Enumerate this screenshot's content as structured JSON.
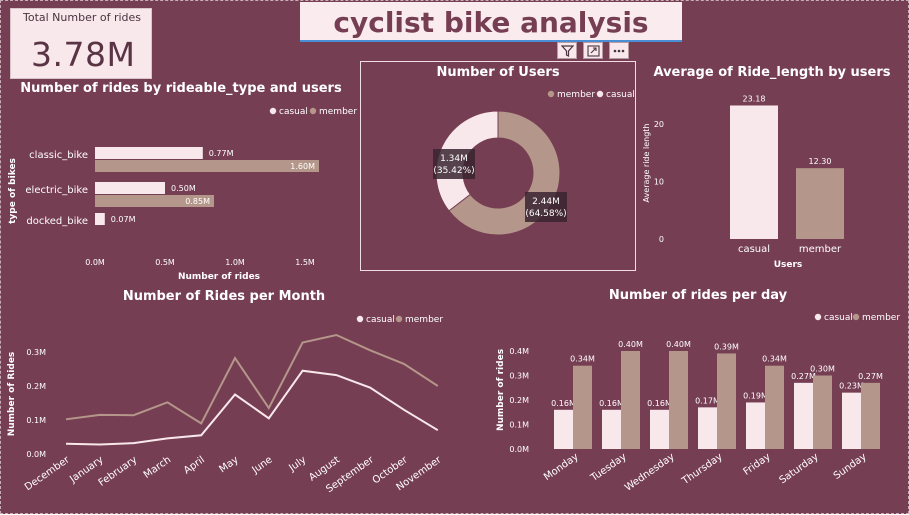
{
  "header": {
    "title": "cyclist bike analysis",
    "kpi_label": "Total Number of rides",
    "kpi_value": "3.78M"
  },
  "toolbar": {
    "filter_icon": "filter-icon",
    "focus_icon": "focus-mode-icon",
    "more_icon": "more-options-icon"
  },
  "colors": {
    "background": "#763E53",
    "casual": "#F8E8EB",
    "member": "#B4968A",
    "light_text": "#ffffff"
  },
  "chart_data": [
    {
      "id": "rideable",
      "type": "bar",
      "orientation": "horizontal",
      "title": "Number of rides by rideable_type and users",
      "xlabel": "Number of rides",
      "ylabel": "type of bikes",
      "categories": [
        "classic_bike",
        "electric_bike",
        "docked_bike"
      ],
      "series": [
        {
          "name": "casual",
          "values": [
            0.77,
            0.5,
            0.07
          ],
          "labels": [
            "0.77M",
            "0.50M",
            "0.07M"
          ]
        },
        {
          "name": "member",
          "values": [
            1.6,
            0.85,
            null
          ],
          "labels": [
            "1.60M",
            "0.85M",
            ""
          ]
        }
      ],
      "xticks": [
        "0.0M",
        "0.5M",
        "1.0M",
        "1.5M"
      ],
      "xtick_values": [
        0,
        0.5,
        1.0,
        1.5
      ],
      "xlim": [
        0,
        1.6
      ],
      "legend": [
        "casual",
        "member"
      ],
      "legend_position": "top-right"
    },
    {
      "id": "users",
      "type": "pie",
      "donut": true,
      "title": "Number of Users",
      "slices": [
        {
          "name": "member",
          "value": 2.44,
          "percent": 64.58,
          "label": "2.44M",
          "pct_label": "(64.58%)"
        },
        {
          "name": "casual",
          "value": 1.34,
          "percent": 35.42,
          "label": "1.34M",
          "pct_label": "(35.42%)"
        }
      ],
      "legend": [
        "member",
        "casual"
      ],
      "legend_position": "top-right"
    },
    {
      "id": "ridelength",
      "type": "bar",
      "title": "Average of Ride_length by users",
      "xlabel": "Users",
      "ylabel": "Average ride length",
      "categories": [
        "casual",
        "member"
      ],
      "values": [
        23.18,
        12.3
      ],
      "labels": [
        "23.18",
        "12.30"
      ],
      "yticks": [
        "0",
        "10",
        "20"
      ],
      "ytick_values": [
        0,
        10,
        20
      ],
      "ylim": [
        0,
        25
      ]
    },
    {
      "id": "month",
      "type": "line",
      "title": "Number of Rides per Month",
      "xlabel": "",
      "ylabel": "Number of Rides",
      "categories": [
        "December",
        "January",
        "February",
        "March",
        "April",
        "May",
        "June",
        "July",
        "August",
        "September",
        "October",
        "November"
      ],
      "series": [
        {
          "name": "casual",
          "values": [
            0.03,
            0.028,
            0.032,
            0.046,
            0.055,
            0.175,
            0.105,
            0.245,
            0.232,
            0.195,
            0.13,
            0.07
          ]
        },
        {
          "name": "member",
          "values": [
            0.102,
            0.115,
            0.114,
            0.152,
            0.09,
            0.282,
            0.135,
            0.328,
            0.35,
            0.305,
            0.265,
            0.2
          ]
        }
      ],
      "yticks": [
        "0.0M",
        "0.1M",
        "0.2M",
        "0.3M"
      ],
      "ytick_values": [
        0,
        0.1,
        0.2,
        0.3
      ],
      "ylim": [
        0,
        0.36
      ],
      "legend": [
        "casual",
        "member"
      ],
      "legend_position": "top-right"
    },
    {
      "id": "day",
      "type": "bar",
      "title": "Number of rides per day",
      "xlabel": "",
      "ylabel": "Number of rides",
      "categories": [
        "Monday",
        "Tuesday",
        "Wednesday",
        "Thursday",
        "Friday",
        "Saturday",
        "Sunday"
      ],
      "series": [
        {
          "name": "casual",
          "values": [
            0.16,
            0.16,
            0.16,
            0.17,
            0.19,
            0.27,
            0.23
          ],
          "labels": [
            "0.16M",
            "0.16M",
            "0.16M",
            "0.17M",
            "0.19M",
            "0.27M",
            "0.23M"
          ]
        },
        {
          "name": "member",
          "values": [
            0.34,
            0.4,
            0.4,
            0.39,
            0.34,
            0.3,
            0.27
          ],
          "labels": [
            "0.34M",
            "0.40M",
            "0.40M",
            "0.39M",
            "0.34M",
            "0.30M",
            "0.27M"
          ]
        }
      ],
      "yticks": [
        "0.0M",
        "0.1M",
        "0.2M",
        "0.3M",
        "0.4M"
      ],
      "ytick_values": [
        0,
        0.1,
        0.2,
        0.3,
        0.4
      ],
      "ylim": [
        0,
        0.4
      ],
      "legend": [
        "casual",
        "member"
      ],
      "legend_position": "top-right"
    }
  ]
}
